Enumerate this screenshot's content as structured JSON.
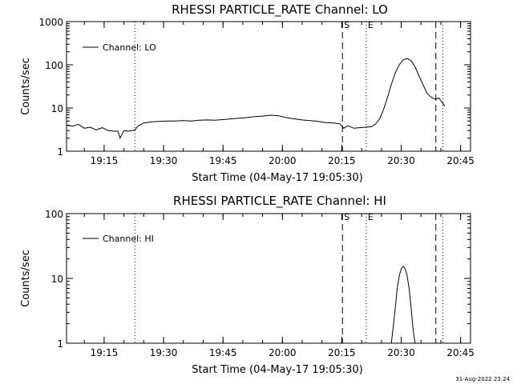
{
  "footer_timestamp": "31-Aug-2022 23:24",
  "colors": {
    "background": "#ffffff",
    "foreground": "#000000"
  },
  "chart_data": [
    {
      "type": "line",
      "title": "RHESSI PARTICLE_RATE Channel: LO",
      "xlabel": "Start Time (04-May-17 19:05:30)",
      "ylabel": "Counts/sec",
      "y_scale": "log",
      "xlim": [
        "19:05:30",
        "20:47:30"
      ],
      "ylim": [
        1,
        1000
      ],
      "x_ticks": [
        "19:15",
        "19:30",
        "19:45",
        "20:00",
        "20:15",
        "20:30",
        "20:45"
      ],
      "y_ticks": [
        "1",
        "10",
        "100",
        "1000"
      ],
      "legend": {
        "entries": [
          "Channel: LO"
        ],
        "placement": "top-left"
      },
      "markers": [
        {
          "time": "19:22:45",
          "style": "dotted",
          "label": ""
        },
        {
          "time": "20:15:10",
          "style": "dashed",
          "label": "S"
        },
        {
          "time": "20:21:10",
          "style": "dotted",
          "label": "E"
        },
        {
          "time": "20:38:45",
          "style": "dashed",
          "label": ""
        },
        {
          "time": "20:40:30",
          "style": "dotted",
          "label": ""
        }
      ],
      "series": [
        {
          "name": "Channel: LO",
          "x": [
            "19:05:30",
            "19:07:00",
            "19:08:30",
            "19:10:00",
            "19:11:30",
            "19:13:00",
            "19:14:30",
            "19:16:00",
            "19:17:30",
            "19:18:30",
            "19:19:00",
            "19:20:00",
            "19:21:00",
            "19:22:00",
            "19:22:45",
            "19:23:30",
            "19:25:00",
            "19:27:00",
            "19:29:00",
            "19:31:00",
            "19:33:00",
            "19:35:00",
            "19:37:00",
            "19:39:00",
            "19:41:00",
            "19:43:00",
            "19:45:00",
            "19:47:00",
            "19:49:00",
            "19:51:00",
            "19:53:00",
            "19:55:00",
            "19:57:00",
            "19:59:00",
            "20:01:00",
            "20:03:00",
            "20:05:00",
            "20:07:00",
            "20:09:00",
            "20:11:00",
            "20:13:00",
            "20:14:30",
            "20:15:30",
            "20:16:30",
            "20:18:00",
            "20:19:30",
            "20:21:00",
            "20:22:30",
            "20:23:30",
            "20:24:30",
            "20:25:30",
            "20:26:30",
            "20:27:30",
            "20:28:30",
            "20:29:30",
            "20:30:30",
            "20:31:30",
            "20:32:30",
            "20:33:30",
            "20:34:30",
            "20:35:30",
            "20:36:30",
            "20:37:30",
            "20:38:30",
            "20:39:30",
            "20:40:30",
            "20:41:00"
          ],
          "values": [
            4.0,
            3.8,
            4.2,
            3.4,
            3.6,
            3.1,
            3.5,
            3.0,
            2.9,
            2.9,
            2.0,
            3.0,
            2.9,
            3.0,
            3.1,
            3.8,
            4.5,
            4.8,
            4.9,
            5.0,
            5.0,
            5.1,
            5.0,
            5.2,
            5.3,
            5.2,
            5.4,
            5.6,
            5.8,
            6.0,
            6.3,
            6.5,
            6.8,
            6.6,
            6.0,
            5.6,
            5.3,
            5.1,
            4.9,
            4.6,
            4.5,
            4.3,
            3.4,
            3.9,
            3.4,
            3.5,
            3.6,
            3.7,
            4.2,
            5.5,
            9.0,
            17,
            35,
            65,
            100,
            130,
            140,
            125,
            90,
            55,
            35,
            22,
            18,
            16,
            17,
            13,
            11
          ]
        }
      ]
    },
    {
      "type": "line",
      "title": "RHESSI PARTICLE_RATE Channel: HI",
      "xlabel": "Start Time (04-May-17 19:05:30)",
      "ylabel": "Counts/sec",
      "y_scale": "log",
      "xlim": [
        "19:05:30",
        "20:47:30"
      ],
      "ylim": [
        1,
        100
      ],
      "x_ticks": [
        "19:15",
        "19:30",
        "19:45",
        "20:00",
        "20:15",
        "20:30",
        "20:45"
      ],
      "y_ticks": [
        "1",
        "10",
        "100"
      ],
      "legend": {
        "entries": [
          "Channel: HI"
        ],
        "placement": "top-left"
      },
      "markers": [
        {
          "time": "19:22:45",
          "style": "dotted",
          "label": ""
        },
        {
          "time": "20:15:10",
          "style": "dashed",
          "label": "S"
        },
        {
          "time": "20:21:10",
          "style": "dotted",
          "label": "E"
        },
        {
          "time": "20:38:45",
          "style": "dashed",
          "label": ""
        },
        {
          "time": "20:40:30",
          "style": "dotted",
          "label": ""
        }
      ],
      "series": [
        {
          "name": "Channel: HI",
          "x": [
            "20:27:30",
            "20:28:00",
            "20:28:30",
            "20:29:00",
            "20:29:30",
            "20:30:00",
            "20:30:30",
            "20:31:00",
            "20:31:30",
            "20:32:00",
            "20:32:30",
            "20:33:00",
            "20:33:30"
          ],
          "values": [
            1.0,
            1.8,
            3.5,
            7.0,
            11,
            14,
            15.5,
            14,
            11,
            7.0,
            3.5,
            1.6,
            1.0
          ]
        }
      ]
    }
  ]
}
